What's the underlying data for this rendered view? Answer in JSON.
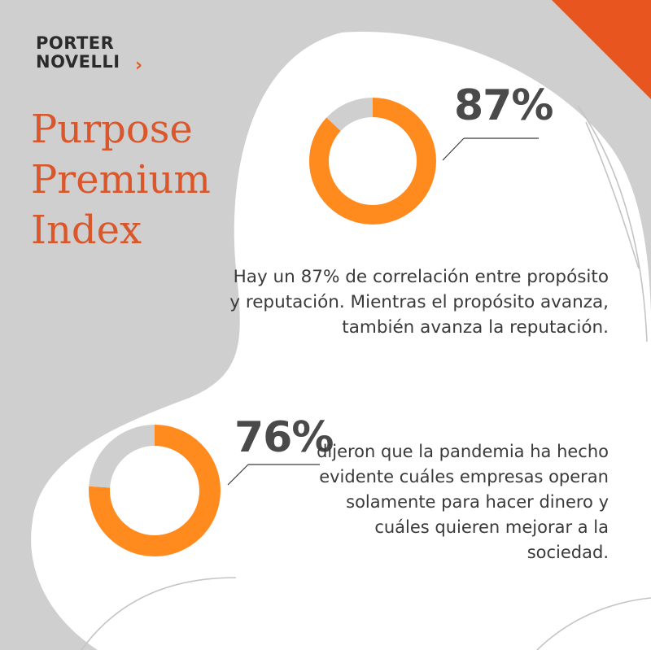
{
  "brand": {
    "line1": "PORTER",
    "line2": "NOVELLI",
    "chevron": "›",
    "accent_color": "#e8551f"
  },
  "title": {
    "line1": "Purpose",
    "line2": "Premium",
    "line3": "Index",
    "color": "#d9572a"
  },
  "colors": {
    "donut_fill": "#ff8a1e",
    "donut_rest": "#cfcfcf",
    "background": "#cfcfcf",
    "blob": "#ffffff",
    "corner": "#e8551f"
  },
  "stats": [
    {
      "value_label": "87%",
      "description": "Hay un 87% de correlación entre propósito y reputación. Mientras el propósito avanza, también avanza la reputación."
    },
    {
      "value_label": "76%",
      "description": "dijeron que la pandemia ha hecho evidente cuáles empresas operan solamente para hacer dinero y cuáles quieren mejorar a la sociedad."
    }
  ],
  "chart_data": [
    {
      "type": "pie",
      "donut": true,
      "values": [
        87,
        13
      ],
      "labels": [
        "87%",
        ""
      ]
    },
    {
      "type": "pie",
      "donut": true,
      "values": [
        76,
        24
      ],
      "labels": [
        "76%",
        ""
      ]
    }
  ]
}
